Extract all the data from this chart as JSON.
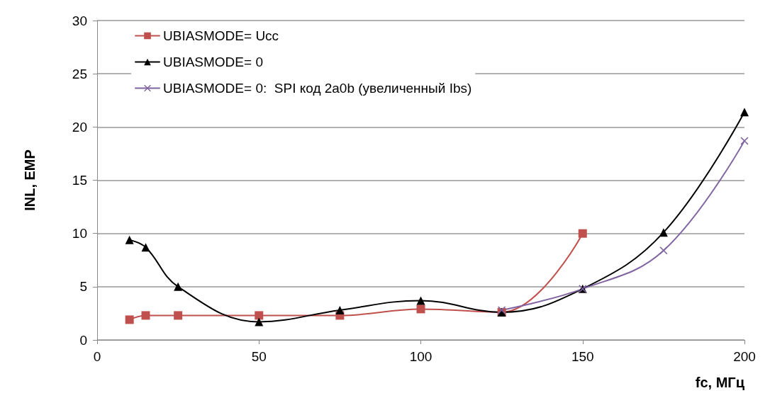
{
  "chart_data": {
    "type": "line",
    "xlabel": "fc, МГц",
    "ylabel": "INL, ЕМР",
    "xlim": [
      0,
      200
    ],
    "xticks": [
      0,
      50,
      100,
      150,
      200
    ],
    "ylim": [
      0,
      30
    ],
    "yticks": [
      0,
      5,
      10,
      15,
      20,
      25,
      30
    ],
    "grid": "y",
    "legend": "top left",
    "line_style": "solid",
    "series": [
      {
        "name": "UBIASMODE= Ucc",
        "color": "#c0504d",
        "marker": "square",
        "x": [
          10,
          15,
          25,
          50,
          75,
          100,
          125,
          150
        ],
        "values": [
          1.9,
          2.3,
          2.3,
          2.3,
          2.3,
          2.9,
          2.6,
          10
        ]
      },
      {
        "name": "UBIASMODE= 0",
        "color": "#000000",
        "marker": "triangle",
        "x": [
          10,
          15,
          25,
          50,
          75,
          100,
          125,
          150,
          175,
          200
        ],
        "values": [
          9.4,
          8.7,
          5.0,
          1.7,
          2.8,
          3.7,
          2.6,
          4.8,
          10.1,
          21.4
        ]
      },
      {
        "name": "UBIASMODE= 0:  SPI код 2a0b (увеличенный Ibs)",
        "color": "#8064a2",
        "marker": "cross",
        "x": [
          125,
          150,
          175,
          200
        ],
        "values": [
          2.8,
          4.8,
          8.4,
          18.7
        ]
      }
    ]
  }
}
